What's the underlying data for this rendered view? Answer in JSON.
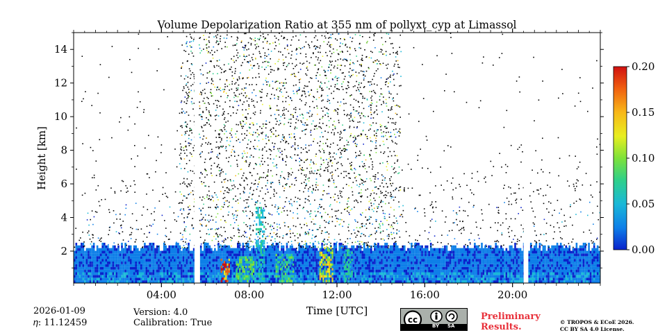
{
  "chart_data": {
    "type": "heatmap",
    "title": "Volume Depolarization Ratio at 355 nm of pollyxt_cyp at Limassol",
    "xlabel": "Time [UTC]",
    "ylabel": "Height [km]",
    "xlim_hours": [
      0,
      24
    ],
    "ylim_km": [
      0.1,
      15
    ],
    "x_ticks": [
      {
        "hour": 4,
        "label": "04:00"
      },
      {
        "hour": 8,
        "label": "08:00"
      },
      {
        "hour": 12,
        "label": "12:00"
      },
      {
        "hour": 16,
        "label": "16:00"
      },
      {
        "hour": 20,
        "label": "20:00"
      }
    ],
    "y_ticks": [
      {
        "value": 2,
        "label": "2"
      },
      {
        "value": 4,
        "label": "4"
      },
      {
        "value": 6,
        "label": "6"
      },
      {
        "value": 8,
        "label": "8"
      },
      {
        "value": 10,
        "label": "10"
      },
      {
        "value": 12,
        "label": "12"
      },
      {
        "value": 14,
        "label": "14"
      }
    ],
    "colorbar": {
      "min": 0.0,
      "max": 0.2,
      "ticks": [
        {
          "value": 0.0,
          "label": "0.00"
        },
        {
          "value": 0.05,
          "label": "0.05"
        },
        {
          "value": 0.1,
          "label": "0.10"
        },
        {
          "value": 0.15,
          "label": "0.15"
        },
        {
          "value": 0.2,
          "label": "0.20"
        }
      ],
      "colors": [
        "#0a22cc",
        "#0e7fe8",
        "#1ab8d8",
        "#2fd08a",
        "#7ee23a",
        "#e8ee20",
        "#f8b818",
        "#f06010",
        "#d01010"
      ]
    },
    "gaps_hours": [
      5.6,
      20.6
    ],
    "cloud_layer_hours": [
      4.8,
      14.9
    ],
    "boundary_layer_top_km": 2.2,
    "aerosol_plumes": [
      {
        "start_hour": 6.7,
        "end_hour": 7.1,
        "top_km": 1.5,
        "value": 0.2
      },
      {
        "start_hour": 7.4,
        "end_hour": 8.2,
        "top_km": 1.6,
        "value": 0.1
      },
      {
        "start_hour": 8.3,
        "end_hour": 8.7,
        "top_km": 4.5,
        "value": 0.07
      },
      {
        "start_hour": 9.2,
        "end_hour": 10.0,
        "top_km": 1.8,
        "value": 0.09
      },
      {
        "start_hour": 11.2,
        "end_hour": 11.8,
        "top_km": 2.2,
        "value": 0.14
      },
      {
        "start_hour": 12.3,
        "end_hour": 12.7,
        "top_km": 2.0,
        "value": 0.08
      }
    ]
  },
  "footer": {
    "date": "2026-01-09",
    "eta": "𝜂: 11.12459",
    "version": "Version: 4.0",
    "calibration": "Calibration: True",
    "preliminary_line1": "Preliminary",
    "preliminary_line2": "Results.",
    "license_line1": "© TROPOS & ECoE 2026.",
    "license_line2": "CC BY SA 4.0 License.",
    "cc_badge_by": "BY",
    "cc_badge_sa": "SA"
  }
}
